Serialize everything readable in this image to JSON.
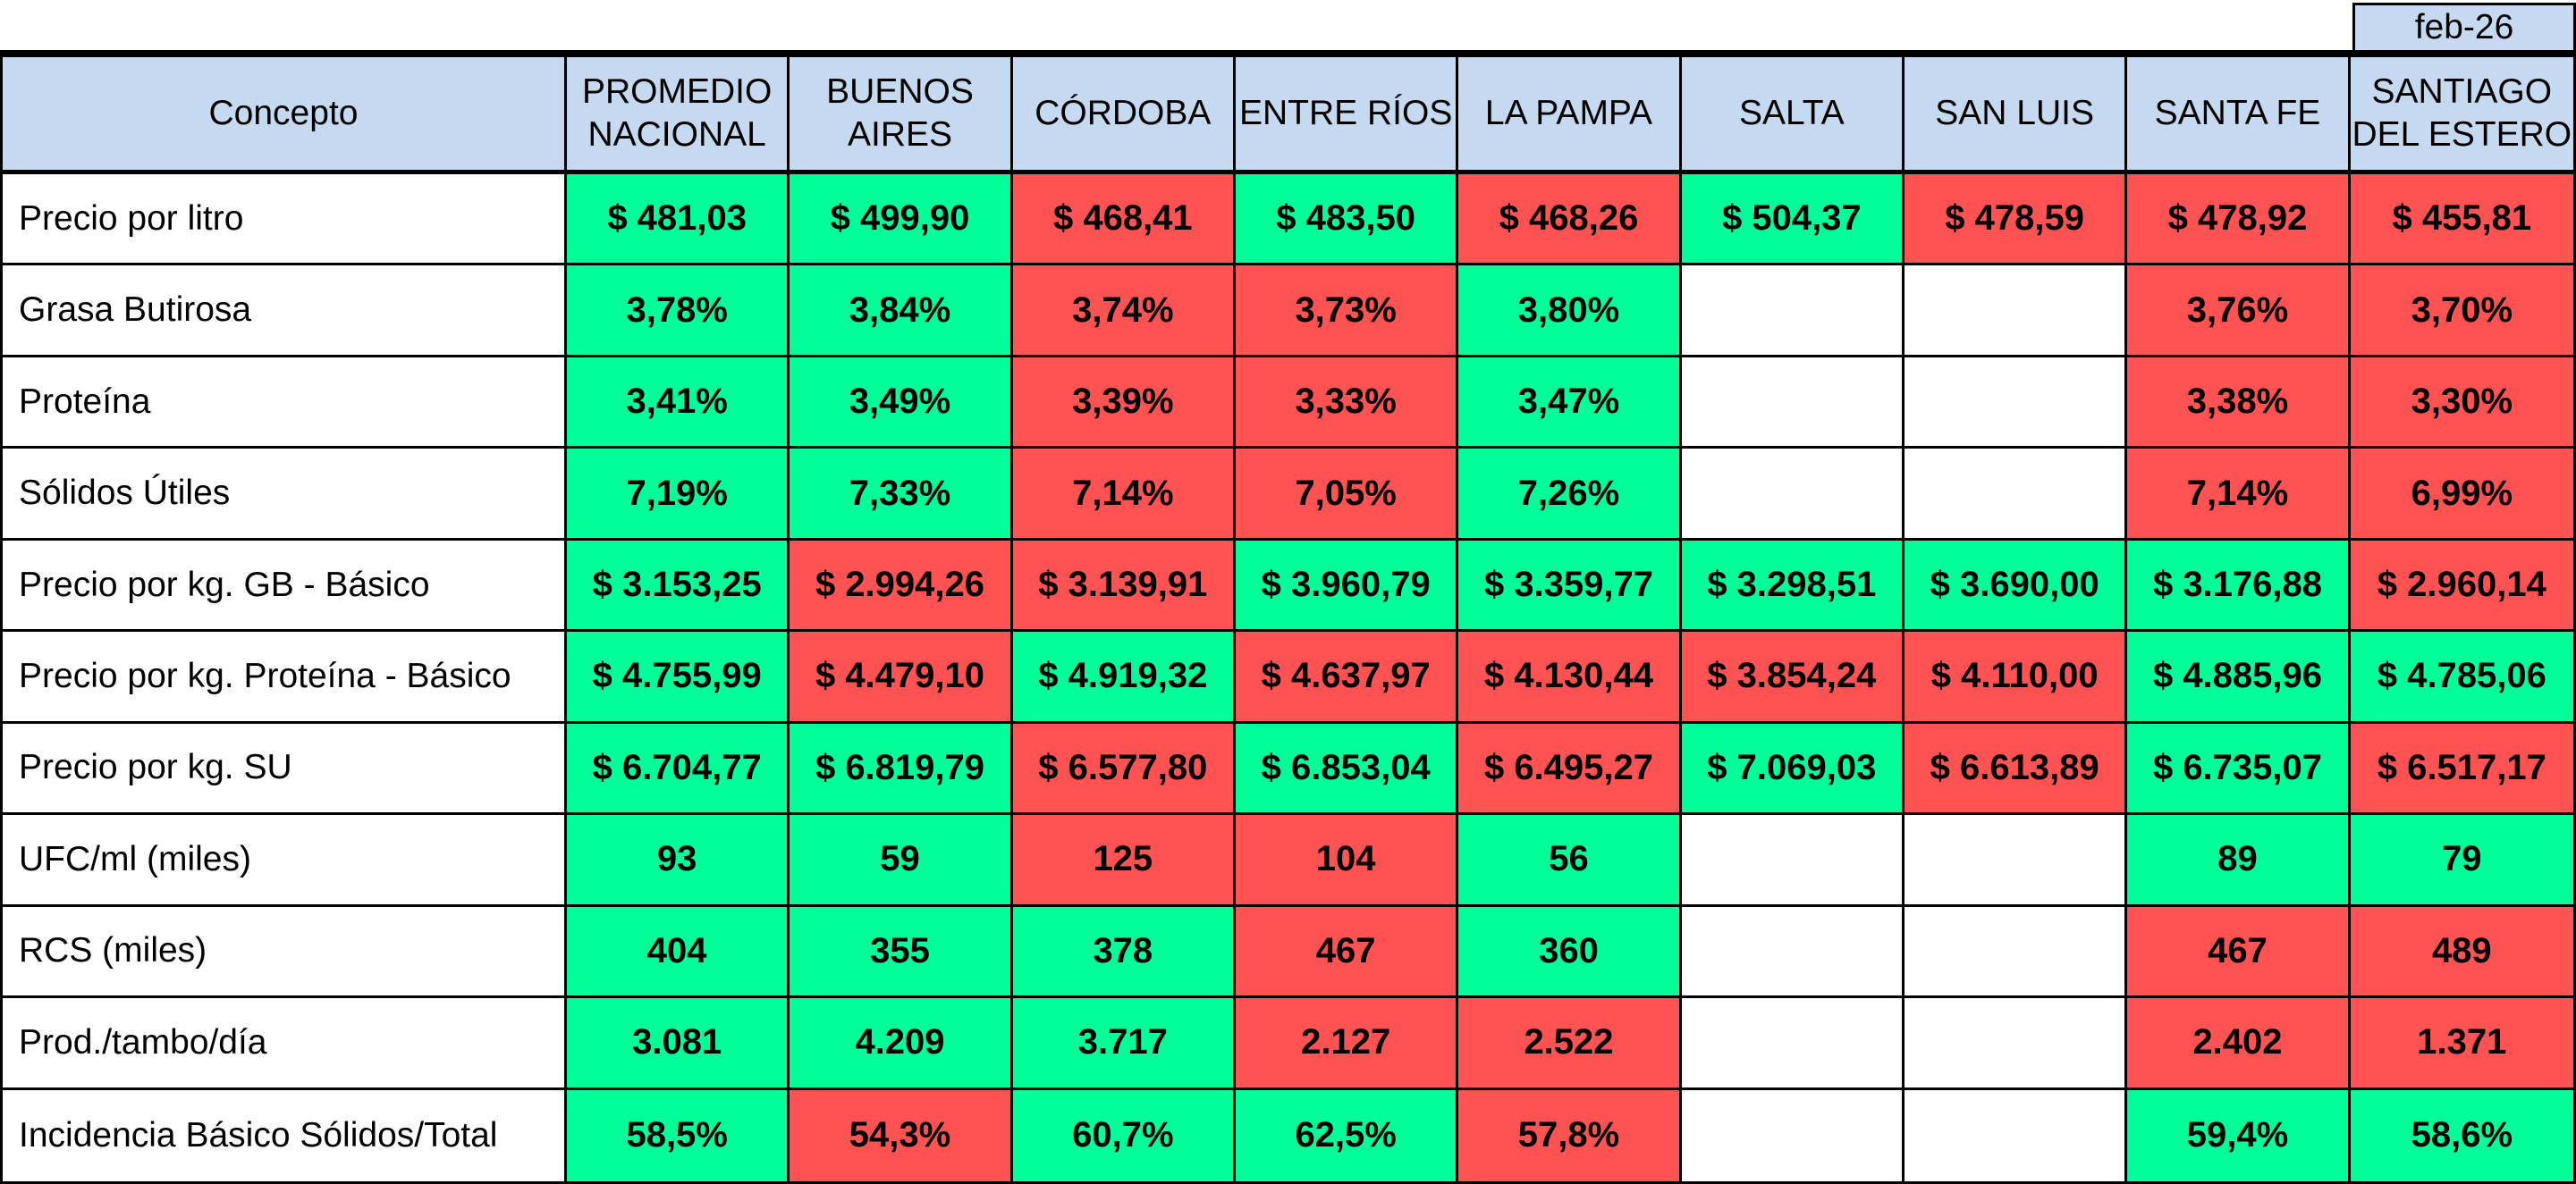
{
  "period": "feb-26",
  "header": {
    "concept": "Concepto",
    "columns": [
      [
        "PROMEDIO",
        "NACIONAL"
      ],
      [
        "BUENOS",
        "AIRES"
      ],
      [
        "CÓRDOBA"
      ],
      [
        "ENTRE RÍOS"
      ],
      [
        "LA PAMPA"
      ],
      [
        "SALTA"
      ],
      [
        "SAN LUIS"
      ],
      [
        "SANTA FE"
      ],
      [
        "SANTIAGO",
        "DEL ESTERO"
      ]
    ]
  },
  "colors": {
    "favorable": "#00ff99",
    "unfavorable": "#ff5252",
    "header": "#c5d9f1"
  },
  "rows": [
    {
      "label": "Precio por litro",
      "values": [
        "$ 481,03",
        "$ 499,90",
        "$ 468,41",
        "$ 483,50",
        "$ 468,26",
        "$ 504,37",
        "$ 478,59",
        "$ 478,92",
        "$ 455,81"
      ],
      "status": [
        "g",
        "g",
        "r",
        "g",
        "r",
        "g",
        "r",
        "r",
        "r"
      ]
    },
    {
      "label": "Grasa Butirosa",
      "values": [
        "3,78%",
        "3,84%",
        "3,74%",
        "3,73%",
        "3,80%",
        "",
        "",
        "3,76%",
        "3,70%"
      ],
      "status": [
        "g",
        "g",
        "r",
        "r",
        "g",
        "w",
        "w",
        "r",
        "r"
      ]
    },
    {
      "label": "Proteína",
      "values": [
        "3,41%",
        "3,49%",
        "3,39%",
        "3,33%",
        "3,47%",
        "",
        "",
        "3,38%",
        "3,30%"
      ],
      "status": [
        "g",
        "g",
        "r",
        "r",
        "g",
        "w",
        "w",
        "r",
        "r"
      ]
    },
    {
      "label": "Sólidos Útiles",
      "values": [
        "7,19%",
        "7,33%",
        "7,14%",
        "7,05%",
        "7,26%",
        "",
        "",
        "7,14%",
        "6,99%"
      ],
      "status": [
        "g",
        "g",
        "r",
        "r",
        "g",
        "w",
        "w",
        "r",
        "r"
      ]
    },
    {
      "label": "Precio por kg. GB - Básico",
      "values": [
        "$ 3.153,25",
        "$ 2.994,26",
        "$ 3.139,91",
        "$ 3.960,79",
        "$ 3.359,77",
        "$ 3.298,51",
        "$ 3.690,00",
        "$ 3.176,88",
        "$ 2.960,14"
      ],
      "status": [
        "g",
        "r",
        "r",
        "g",
        "g",
        "g",
        "g",
        "g",
        "r"
      ]
    },
    {
      "label": "Precio por kg. Proteína - Básico",
      "values": [
        "$ 4.755,99",
        "$ 4.479,10",
        "$ 4.919,32",
        "$ 4.637,97",
        "$ 4.130,44",
        "$ 3.854,24",
        "$ 4.110,00",
        "$ 4.885,96",
        "$ 4.785,06"
      ],
      "status": [
        "g",
        "r",
        "g",
        "r",
        "r",
        "r",
        "r",
        "g",
        "g"
      ]
    },
    {
      "label": "Precio por kg. SU",
      "values": [
        "$ 6.704,77",
        "$ 6.819,79",
        "$ 6.577,80",
        "$ 6.853,04",
        "$ 6.495,27",
        "$ 7.069,03",
        "$ 6.613,89",
        "$ 6.735,07",
        "$ 6.517,17"
      ],
      "status": [
        "g",
        "g",
        "r",
        "g",
        "r",
        "g",
        "r",
        "g",
        "r"
      ]
    },
    {
      "label": "UFC/ml (miles)",
      "values": [
        "93",
        "59",
        "125",
        "104",
        "56",
        "",
        "",
        "89",
        "79"
      ],
      "status": [
        "g",
        "g",
        "r",
        "r",
        "g",
        "w",
        "w",
        "g",
        "g"
      ]
    },
    {
      "label": "RCS (miles)",
      "values": [
        "404",
        "355",
        "378",
        "467",
        "360",
        "",
        "",
        "467",
        "489"
      ],
      "status": [
        "g",
        "g",
        "g",
        "r",
        "g",
        "w",
        "w",
        "r",
        "r"
      ]
    },
    {
      "label": "Prod./tambo/día",
      "values": [
        "3.081",
        "4.209",
        "3.717",
        "2.127",
        "2.522",
        "",
        "",
        "2.402",
        "1.371"
      ],
      "status": [
        "g",
        "g",
        "g",
        "r",
        "r",
        "w",
        "w",
        "r",
        "r"
      ]
    },
    {
      "label": "Incidencia Básico Sólidos/Total",
      "values": [
        "58,5%",
        "54,3%",
        "60,7%",
        "62,5%",
        "57,8%",
        "",
        "",
        "59,4%",
        "58,6%"
      ],
      "status": [
        "g",
        "r",
        "g",
        "g",
        "r",
        "w",
        "w",
        "g",
        "g"
      ]
    }
  ]
}
